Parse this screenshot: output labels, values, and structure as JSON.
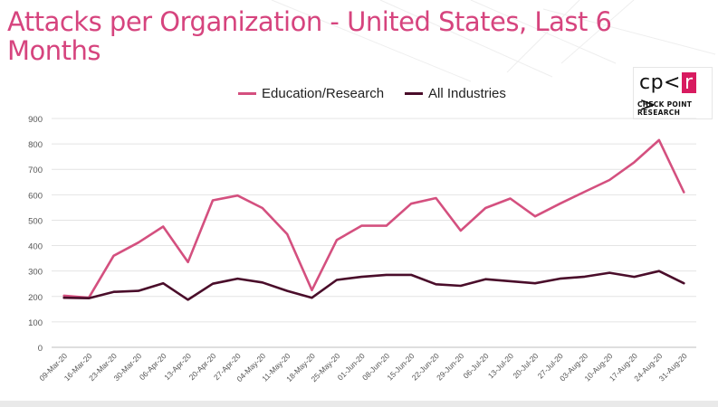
{
  "header": {
    "title": "Attacks per Organization - United States, Last 6 Months"
  },
  "logo": {
    "mark_left": "cp<",
    "mark_box": "r",
    "mark_right": ">",
    "subtitle": "CHECK POINT RESEARCH"
  },
  "colors": {
    "title": "#d6447e",
    "series_1": "#d4507f",
    "series_2": "#4a0d2a",
    "grid": "#e4e4e4",
    "axis_text": "#555555"
  },
  "chart_data": {
    "type": "line",
    "title": "Attacks per Organization - United States, Last 6 Months",
    "xlabel": "",
    "ylabel": "",
    "ylim": [
      0,
      900
    ],
    "yticks": [
      0,
      100,
      200,
      300,
      400,
      500,
      600,
      700,
      800,
      900
    ],
    "grid": true,
    "legend": "top-center",
    "categories": [
      "09-Mar-20",
      "16-Mar-20",
      "23-Mar-20",
      "30-Mar-20",
      "06-Apr-20",
      "13-Apr-20",
      "20-Apr-20",
      "27-Apr-20",
      "04-May-20",
      "11-May-20",
      "18-May-20",
      "25-May-20",
      "01-Jun-20",
      "08-Jun-20",
      "15-Jun-20",
      "22-Jun-20",
      "29-Jun-20",
      "06-Jul-20",
      "13-Jul-20",
      "20-Jul-20",
      "27-Jul-20",
      "03-Aug-20",
      "10-Aug-20",
      "17-Aug-20",
      "24-Aug-20",
      "31-Aug-20"
    ],
    "series": [
      {
        "name": "Education/Research",
        "color": "#d4507f",
        "values": [
          203,
          195,
          360,
          412,
          475,
          335,
          578,
          597,
          548,
          445,
          225,
          422,
          478,
          478,
          565,
          587,
          459,
          548,
          585,
          515,
          565,
          612,
          658,
          728,
          815,
          610
        ]
      },
      {
        "name": "All Industries",
        "color": "#4a0d2a",
        "values": [
          195,
          193,
          218,
          222,
          252,
          187,
          250,
          270,
          255,
          222,
          195,
          265,
          277,
          285,
          285,
          248,
          242,
          268,
          260,
          252,
          270,
          278,
          293,
          277,
          300,
          252
        ]
      }
    ]
  }
}
